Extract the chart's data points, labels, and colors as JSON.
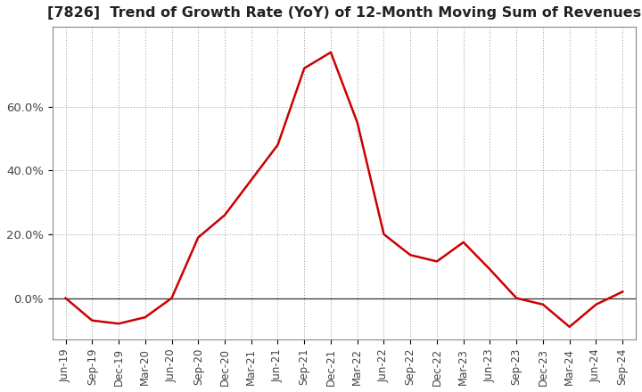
{
  "title": "[7826]  Trend of Growth Rate (YoY) of 12-Month Moving Sum of Revenues",
  "x_labels": [
    "Jun-19",
    "Sep-19",
    "Dec-19",
    "Mar-20",
    "Jun-20",
    "Sep-20",
    "Dec-20",
    "Mar-21",
    "Jun-21",
    "Sep-21",
    "Dec-21",
    "Mar-22",
    "Jun-22",
    "Sep-22",
    "Dec-22",
    "Mar-23",
    "Jun-23",
    "Sep-23",
    "Dec-23",
    "Mar-24",
    "Jun-24",
    "Sep-24"
  ],
  "y_values": [
    0.0,
    -0.07,
    -0.08,
    -0.06,
    0.0,
    0.19,
    0.26,
    0.37,
    0.48,
    0.72,
    0.77,
    0.55,
    0.2,
    0.135,
    0.115,
    0.175,
    0.09,
    0.0,
    -0.02,
    -0.09,
    -0.02,
    0.02
  ],
  "line_color": "#cc0000",
  "line_width": 1.8,
  "background_color": "#ffffff",
  "plot_bg_color": "#ffffff",
  "grid_color": "#999999",
  "ylim": [
    -0.13,
    0.85
  ],
  "yticks": [
    0.0,
    0.2,
    0.4,
    0.6
  ],
  "ytick_labels": [
    "0.0%",
    "20.0%",
    "40.0%",
    "60.0%"
  ],
  "title_fontsize": 11.5,
  "tick_fontsize": 8.5,
  "title_color": "#222222",
  "tick_color": "#444444"
}
